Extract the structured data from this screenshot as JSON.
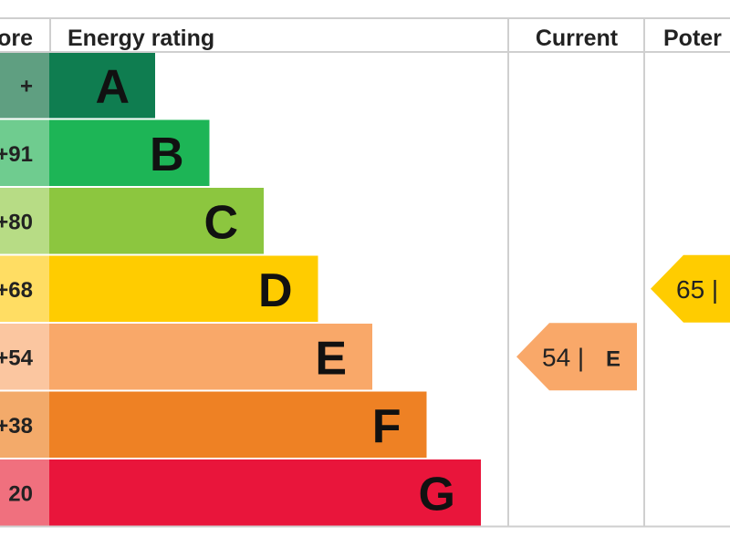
{
  "chart_data": {
    "type": "bar",
    "headers": {
      "score": "ore",
      "rating": "Energy rating",
      "current": "Current",
      "potential": "Poter"
    },
    "bands": [
      {
        "letter": "A",
        "score_range": "+",
        "color": "#0f7d50",
        "score_color": "#5f9f81"
      },
      {
        "letter": "B",
        "score_range": "+91",
        "color": "#1db556",
        "score_color": "#6fcc8f"
      },
      {
        "letter": "C",
        "score_range": "+80",
        "color": "#8cc63f",
        "score_color": "#b7dc85"
      },
      {
        "letter": "D",
        "score_range": "+68",
        "color": "#ffcc00",
        "score_color": "#ffdd63"
      },
      {
        "letter": "E",
        "score_range": "+54",
        "color": "#f9a869",
        "score_color": "#fbc6a0"
      },
      {
        "letter": "F",
        "score_range": "+38",
        "color": "#ee8124",
        "score_color": "#f3aa6a"
      },
      {
        "letter": "G",
        "score_range": "20",
        "color": "#e9153b",
        "score_color": "#f0707e"
      }
    ],
    "current": {
      "value": "54 |",
      "letter": "E",
      "band": "E",
      "color": "#f9a869"
    },
    "potential": {
      "value": "65 |",
      "letter": "",
      "band": "D",
      "color": "#ffcc00"
    }
  }
}
